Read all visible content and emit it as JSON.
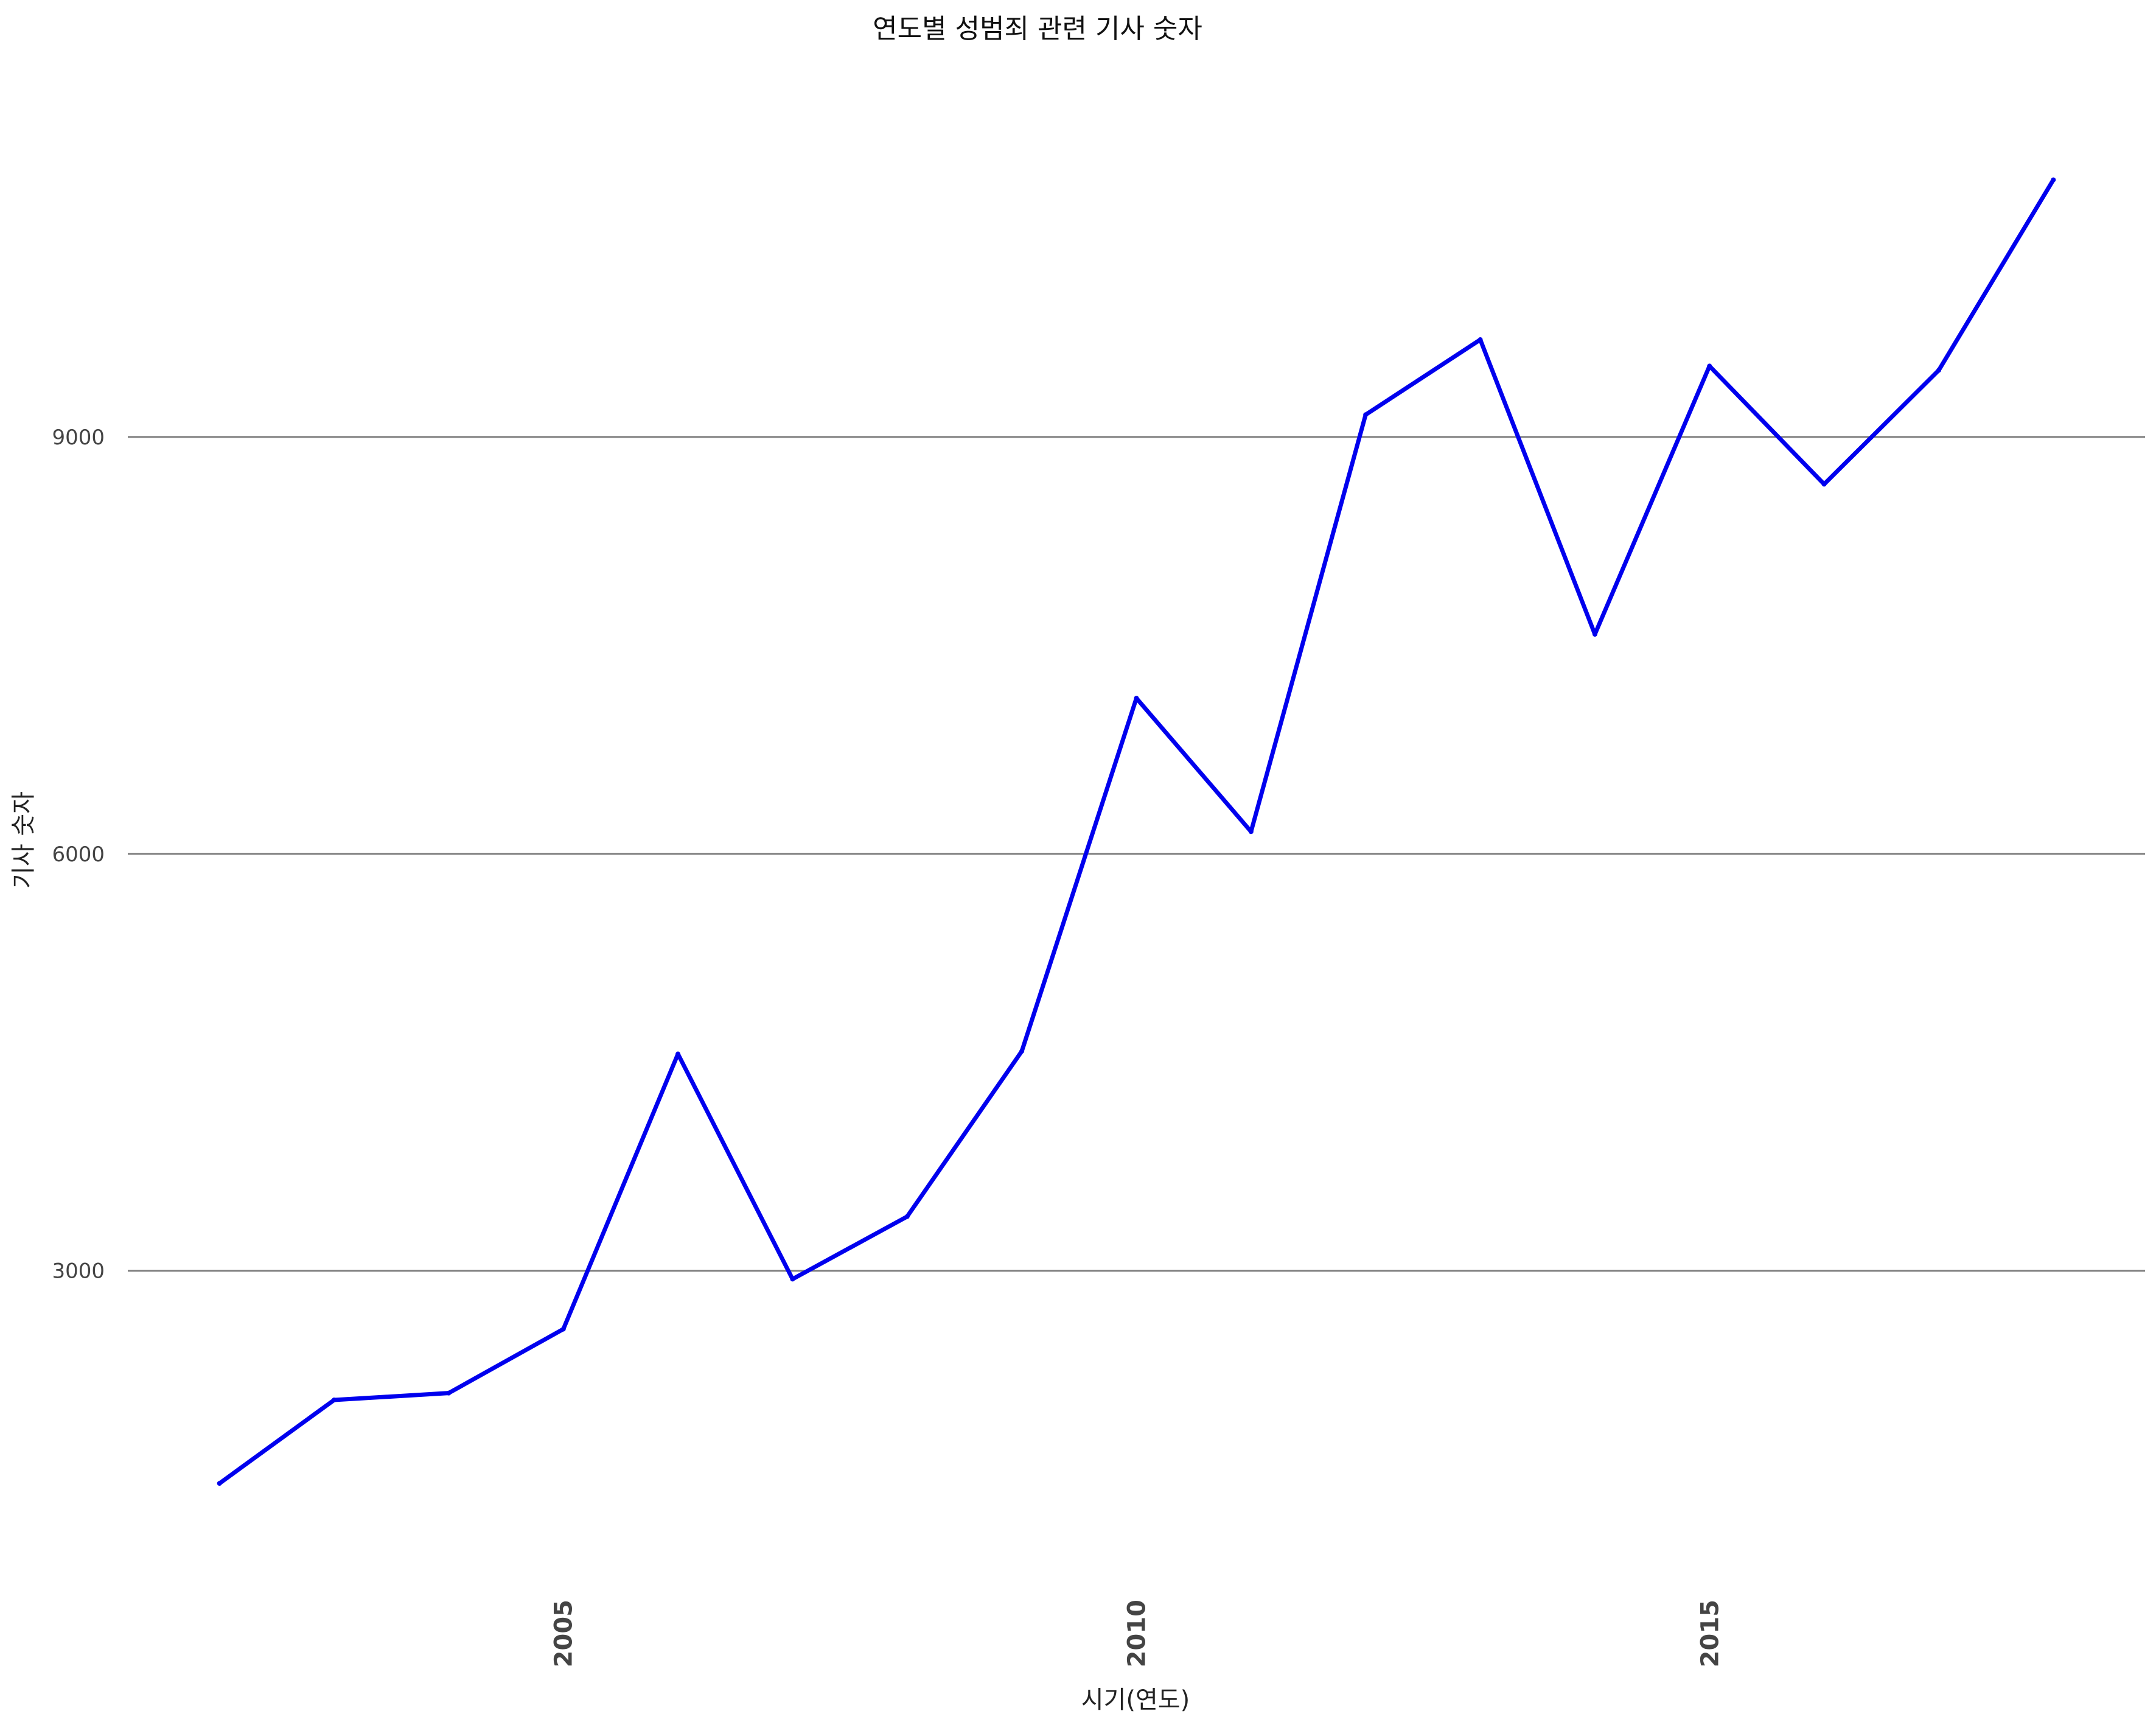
{
  "chart_data": {
    "type": "line",
    "title": "연도별 성범죄 관련 기사 숫자",
    "xlabel": "시기(연도)",
    "ylabel": "기사 숫자",
    "x": [
      2002,
      2003,
      2004,
      2005,
      2006,
      2007,
      2008,
      2009,
      2010,
      2011,
      2012,
      2013,
      2014,
      2015,
      2016,
      2017,
      2018
    ],
    "series": [
      {
        "values": [
          1470,
          2070,
          2120,
          2580,
          4560,
          2940,
          3390,
          4580,
          7120,
          6160,
          9160,
          9700,
          7580,
          9510,
          8660,
          9480,
          10850
        ]
      }
    ],
    "xticks": [
      "2005",
      "2010",
      "2015"
    ],
    "yticks": [
      "3000",
      "6000",
      "9000"
    ],
    "xlim": [
      2001.2,
      2018.8
    ],
    "ylim": [
      800,
      11750
    ],
    "grid": "horizontal",
    "line_color": "#0000ee"
  }
}
